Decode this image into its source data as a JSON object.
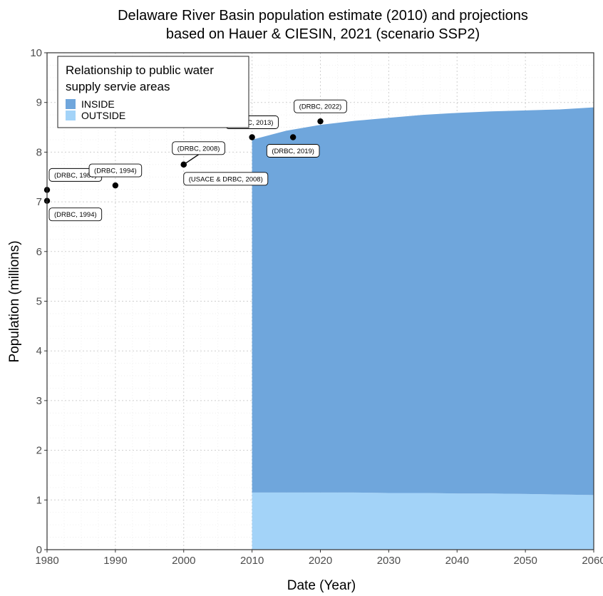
{
  "chart_data": {
    "type": "area",
    "title_line1": "Delaware River Basin population estimate (2010) and projections",
    "title_line2": "based on Hauer & CIESIN, 2021 (scenario SSP2)",
    "xlabel": "Date (Year)",
    "ylabel": "Population (millions)",
    "xlim": [
      1980,
      2060
    ],
    "ylim": [
      0,
      10
    ],
    "x_ticks": [
      1980,
      1990,
      2000,
      2010,
      2020,
      2030,
      2040,
      2050,
      2060
    ],
    "y_ticks": [
      0,
      1,
      2,
      3,
      4,
      5,
      6,
      7,
      8,
      9,
      10
    ],
    "grid": true,
    "legend": {
      "title_line1": "Relationship to public water",
      "title_line2": "supply servie areas",
      "placement": "top-left",
      "entries": [
        {
          "label": "INSIDE",
          "color": "#6fa6dc"
        },
        {
          "label": "OUTSIDE",
          "color": "#a3d3f8"
        }
      ]
    },
    "x": [
      2010,
      2015,
      2020,
      2025,
      2030,
      2035,
      2040,
      2045,
      2050,
      2055,
      2060
    ],
    "series": [
      {
        "name": "OUTSIDE",
        "color": "#a3d3f8",
        "values": [
          1.15,
          1.15,
          1.15,
          1.15,
          1.14,
          1.14,
          1.13,
          1.13,
          1.12,
          1.11,
          1.1
        ]
      },
      {
        "name": "INSIDE",
        "color": "#6fa6dc",
        "values": [
          7.1,
          7.28,
          7.4,
          7.48,
          7.55,
          7.61,
          7.66,
          7.69,
          7.72,
          7.75,
          7.8
        ]
      }
    ],
    "points": [
      {
        "x": 1980,
        "y": 7.24,
        "label": "(DRBC, 1980)",
        "label_pos": "above"
      },
      {
        "x": 1980,
        "y": 7.02,
        "label": "(DRBC, 1994)",
        "label_pos": "below"
      },
      {
        "x": 1990,
        "y": 7.33,
        "label": "(DRBC, 1994)",
        "label_pos": "above"
      },
      {
        "x": 2000,
        "y": 7.75,
        "label": "(DRBC, 2008)",
        "label_pos": "above"
      },
      {
        "x": 2000,
        "y": 7.75,
        "label": "(USACE & DRBC, 2008)",
        "label_pos": "below"
      },
      {
        "x": 2010,
        "y": 8.3,
        "label": "(DRBC, 2013)",
        "label_pos": "above"
      },
      {
        "x": 2016,
        "y": 8.3,
        "label": "(DRBC, 2019)",
        "label_pos": "below"
      },
      {
        "x": 2020,
        "y": 8.62,
        "label": "(DRBC, 2022)",
        "label_pos": "above"
      }
    ]
  }
}
